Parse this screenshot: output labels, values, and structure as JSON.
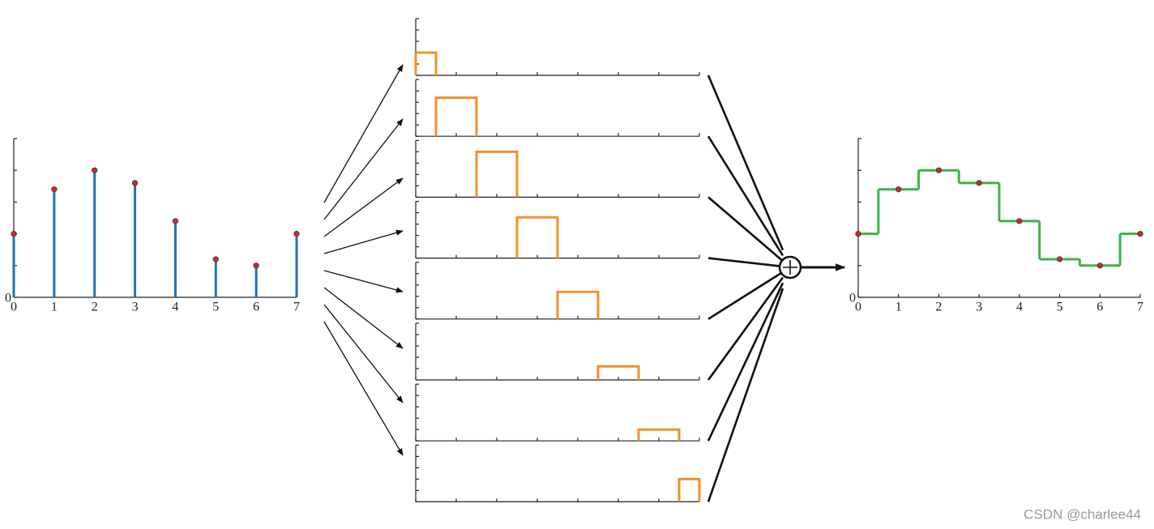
{
  "samples": {
    "x": [
      0,
      1,
      2,
      3,
      4,
      5,
      6,
      7
    ],
    "values": [
      2,
      3.4,
      4,
      3.6,
      2.4,
      1.2,
      1,
      2
    ],
    "xlim": [
      0,
      7
    ],
    "ylim": [
      0,
      5
    ],
    "yticks": [
      0,
      1,
      2,
      3,
      4,
      5
    ],
    "origin_label": "0"
  },
  "stem_color": "#2272b4",
  "point_color": "#d62728",
  "pulse_color": "#f0922a",
  "hold_color": "#3cb44a",
  "watermark": "CSDN @charlee44"
}
